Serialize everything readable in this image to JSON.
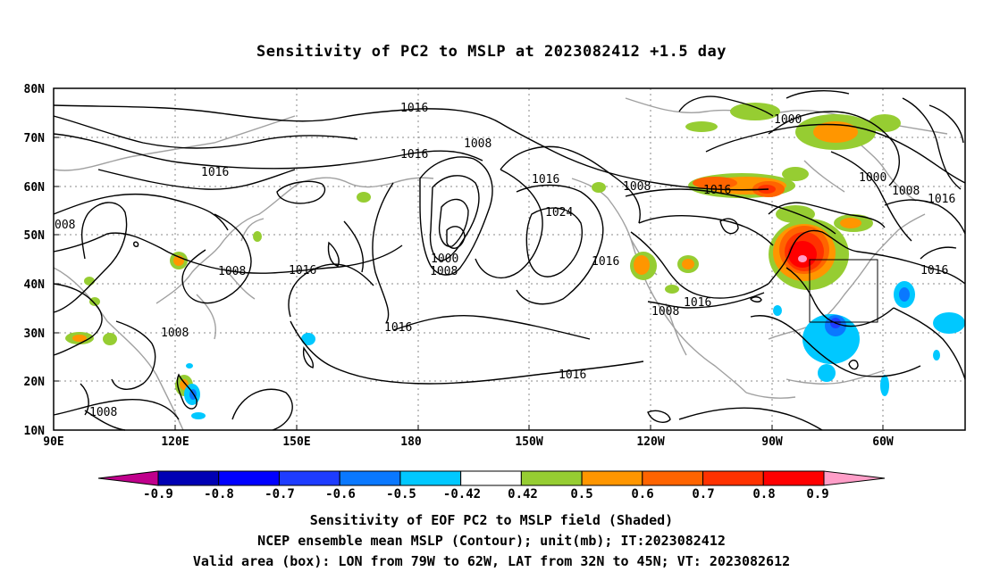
{
  "title": "Sensitivity of PC2 to MSLP at 2023082412 +1.5 day",
  "map": {
    "lat_labels": [
      "80N",
      "70N",
      "60N",
      "50N",
      "40N",
      "30N",
      "20N",
      "10N"
    ],
    "lon_labels": [
      "90E",
      "120E",
      "150E",
      "180",
      "150W",
      "120W",
      "90W",
      "60W"
    ],
    "contour_labels": [
      {
        "text": "1016"
      },
      {
        "text": "1016"
      },
      {
        "text": "1008"
      },
      {
        "text": "1016"
      },
      {
        "text": "1016"
      },
      {
        "text": "1024"
      },
      {
        "text": "1000"
      },
      {
        "text": "1008"
      },
      {
        "text": "1016"
      },
      {
        "text": "1008"
      },
      {
        "text": "1016"
      },
      {
        "text": "1008"
      },
      {
        "text": "1016"
      },
      {
        "text": "1016"
      },
      {
        "text": "1008"
      },
      {
        "text": "1016"
      },
      {
        "text": "1008"
      },
      {
        "text": "1000"
      },
      {
        "text": "1000"
      },
      {
        "text": "1008"
      },
      {
        "text": "1016"
      },
      {
        "text": "1016"
      },
      {
        "text": "008"
      },
      {
        "text": "1008"
      }
    ],
    "valid_box": {
      "lon_from": "79W",
      "lon_to": "62W",
      "lat_from": "32N",
      "lat_to": "45N"
    },
    "colors": {
      "contour": "#000000",
      "coast": "#a0a0a0",
      "grid": "#888888"
    }
  },
  "colorbar": {
    "labels": [
      "-0.9",
      "-0.8",
      "-0.7",
      "-0.6",
      "-0.5",
      "-0.42",
      "0.42",
      "0.5",
      "0.6",
      "0.7",
      "0.8",
      "0.9"
    ],
    "colors": [
      "#0000b4",
      "#0000ff",
      "#1e3cff",
      "#0a78ff",
      "#00c8ff",
      "#ffffff",
      "#96cd32",
      "#ff9600",
      "#ff6400",
      "#ff3200",
      "#ff0000"
    ],
    "low_end_color": "#c0008c",
    "high_end_color": "#ff9ec8"
  },
  "captions": [
    "Sensitivity of EOF PC2 to MSLP field (Shaded)",
    "NCEP ensemble mean MSLP (Contour); unit(mb); IT:2023082412",
    "Valid area (box): LON from 79W to 62W, LAT from 32N to 45N; VT: 2023082612"
  ]
}
